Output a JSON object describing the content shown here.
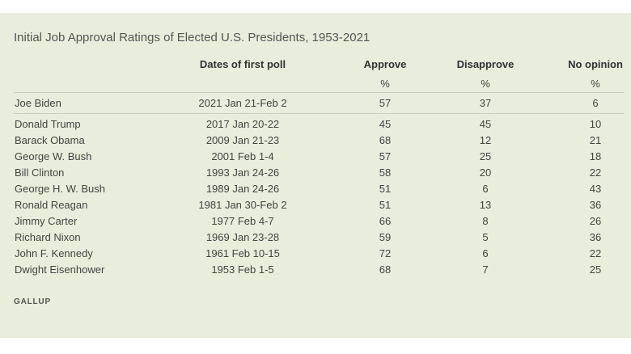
{
  "title": "Initial Job Approval Ratings of Elected U.S. Presidents, 1953-2021",
  "columns": {
    "dates": "Dates of first poll",
    "approve": "Approve",
    "disapprove": "Disapprove",
    "no_opinion": "No opinion",
    "unit": "%"
  },
  "rows": [
    {
      "name": "Joe Biden",
      "dates": "2021 Jan 21-Feb 2",
      "approve": "57",
      "disapprove": "37",
      "no_opinion": "6"
    },
    {
      "name": "Donald Trump",
      "dates": "2017 Jan 20-22",
      "approve": "45",
      "disapprove": "45",
      "no_opinion": "10"
    },
    {
      "name": "Barack Obama",
      "dates": "2009 Jan 21-23",
      "approve": "68",
      "disapprove": "12",
      "no_opinion": "21"
    },
    {
      "name": "George W. Bush",
      "dates": "2001 Feb 1-4",
      "approve": "57",
      "disapprove": "25",
      "no_opinion": "18"
    },
    {
      "name": "Bill Clinton",
      "dates": "1993 Jan 24-26",
      "approve": "58",
      "disapprove": "20",
      "no_opinion": "22"
    },
    {
      "name": "George H. W. Bush",
      "dates": "1989 Jan 24-26",
      "approve": "51",
      "disapprove": "6",
      "no_opinion": "43"
    },
    {
      "name": "Ronald Reagan",
      "dates": "1981 Jan 30-Feb 2",
      "approve": "51",
      "disapprove": "13",
      "no_opinion": "36"
    },
    {
      "name": "Jimmy Carter",
      "dates": "1977 Feb 4-7",
      "approve": "66",
      "disapprove": "8",
      "no_opinion": "26"
    },
    {
      "name": "Richard Nixon",
      "dates": "1969 Jan 23-28",
      "approve": "59",
      "disapprove": "5",
      "no_opinion": "36"
    },
    {
      "name": "John F. Kennedy",
      "dates": "1961 Feb 10-15",
      "approve": "72",
      "disapprove": "6",
      "no_opinion": "22"
    },
    {
      "name": "Dwight Eisenhower",
      "dates": "1953 Feb 1-5",
      "approve": "68",
      "disapprove": "7",
      "no_opinion": "25"
    }
  ],
  "source": "GALLUP",
  "colors": {
    "panel_bg": "#e8eddc",
    "rule": "#c8cdbd",
    "text": "#444444"
  }
}
